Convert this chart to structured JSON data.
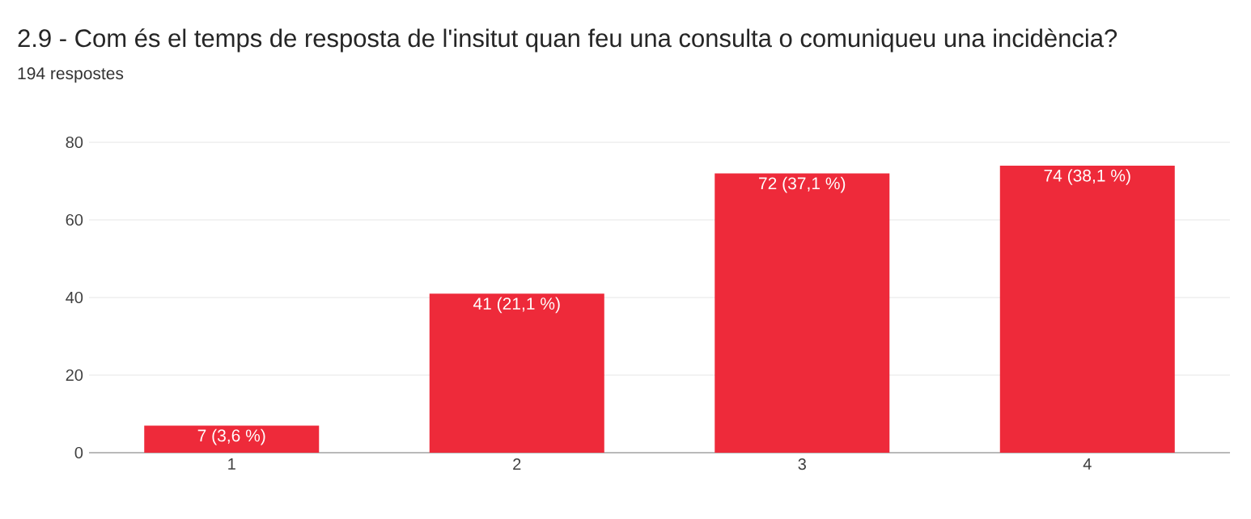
{
  "chart_data": {
    "type": "bar",
    "title": "2.9 - Com és el temps de resposta de l'insitut quan feu una consulta o comuniqueu una incidència?",
    "subtitle": "194 respostes",
    "categories": [
      "1",
      "2",
      "3",
      "4"
    ],
    "values": [
      7,
      41,
      72,
      74
    ],
    "value_labels": [
      "7 (3,6 %)",
      "41 (21,1 %)",
      "72 (37,1 %)",
      "74 (38,1 %)"
    ],
    "color": "#ee2a3a",
    "ylim": [
      0,
      80
    ],
    "yticks": [
      0,
      20,
      40,
      60,
      80
    ],
    "grid": "y"
  }
}
